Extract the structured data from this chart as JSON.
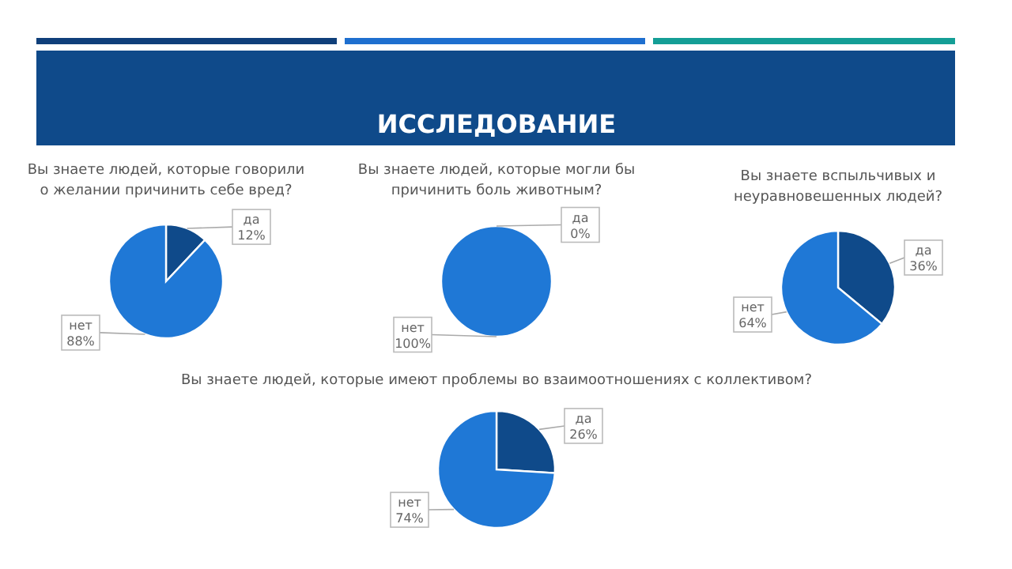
{
  "chart_data": [
    {
      "type": "other",
      "title": "ИССЛЕДОВАНИЕ"
    },
    {
      "type": "pie",
      "title": "Вы знаете людей, которые говорили о желании причинить себе вред?",
      "categories": [
        "да",
        "нет"
      ],
      "values": [
        12,
        88
      ],
      "value_labels": [
        "12%",
        "88%"
      ],
      "colors": [
        "#0f4a8a",
        "#1f78d6"
      ]
    },
    {
      "type": "pie",
      "title": "Вы знаете людей, которые могли бы причинить боль животным?",
      "categories": [
        "да",
        "нет"
      ],
      "values": [
        0,
        100
      ],
      "value_labels": [
        "0%",
        "100%"
      ],
      "colors": [
        "#0f4a8a",
        "#1f78d6"
      ]
    },
    {
      "type": "pie",
      "title": "Вы знаете вспыльчивых и неуравновешенных людей?",
      "categories": [
        "да",
        "нет"
      ],
      "values": [
        36,
        64
      ],
      "value_labels": [
        "36%",
        "64%"
      ],
      "colors": [
        "#0f4a8a",
        "#1f78d6"
      ]
    },
    {
      "type": "pie",
      "title": "Вы знаете людей, которые имеют проблемы во взаимоотношениях с коллективом?",
      "categories": [
        "да",
        "нет"
      ],
      "values": [
        26,
        74
      ],
      "value_labels": [
        "26%",
        "74%"
      ],
      "colors": [
        "#0f4a8a",
        "#1f78d6"
      ]
    }
  ]
}
